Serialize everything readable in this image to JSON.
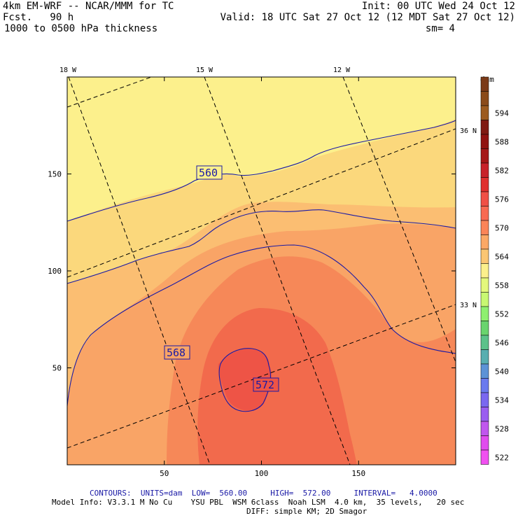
{
  "header": {
    "title_left": "4km EM-WRF -- NCAR/MMM for TC",
    "fcst": "Fcst.   90 h",
    "field": "1000 to 0500 hPa thickness",
    "init": "Init: 00 UTC Wed 24 Oct 12",
    "valid": "Valid: 18 UTC Sat 27 Oct 12 (12 MDT Sat 27 Oct 12)",
    "sm": "sm= 4"
  },
  "footer": {
    "contours": "CONTOURS:  UNITS=dam  LOW=  560.00     HIGH=  572.00     INTERVAL=   4.0000",
    "model_info": "Model Info: V3.3.1 M No Cu    YSU PBL  WSM 6class  Noah LSM  4.0 km,  35 levels,   20 sec",
    "model_info2": "DIFF: simple KM; 2D Smagor"
  },
  "chart_data": {
    "type": "heatmap",
    "title": "1000 to 0500 hPa thickness",
    "units": "dam",
    "xlim": [
      0,
      200
    ],
    "ylim": [
      0,
      200
    ],
    "x_ticks": [
      50,
      100,
      150
    ],
    "y_ticks": [
      50,
      100,
      150
    ],
    "longitude_labels": [
      "18 W",
      "15 W",
      "12 W"
    ],
    "latitude_labels": [
      "36 N",
      "33 N"
    ],
    "contour_levels": [
      560,
      564,
      568,
      572
    ],
    "contour_labels": [
      "560",
      "568",
      "572"
    ],
    "max_region": {
      "x": [
        79,
        106
      ],
      "y": [
        27,
        59
      ],
      "value": 572
    },
    "colorbar": {
      "label": "dam",
      "levels": [
        600,
        597,
        594,
        591,
        588,
        585,
        582,
        579,
        576,
        573,
        570,
        567,
        564,
        561,
        558,
        555,
        552,
        549,
        546,
        543,
        540,
        537,
        534,
        531,
        528,
        525,
        522
      ],
      "tick_labels": [
        "594",
        "588",
        "582",
        "576",
        "570",
        "564",
        "558",
        "552",
        "546",
        "540",
        "534",
        "528",
        "522"
      ],
      "colors": [
        "#7b3a18",
        "#8a4b1a",
        "#9c5b1f",
        "#7f1a12",
        "#901210",
        "#a51818",
        "#c8222a",
        "#e0302e",
        "#f05046",
        "#f86a52",
        "#fb8458",
        "#fba866",
        "#fbc673",
        "#fcf08c",
        "#e4f87c",
        "#c8f872",
        "#8ef070",
        "#6ad46e",
        "#5cc28a",
        "#58aeb0",
        "#5c92d6",
        "#6a7aee",
        "#7a68f0",
        "#9a5ef0",
        "#c056ee",
        "#e04cee",
        "#f050f0"
      ]
    }
  }
}
